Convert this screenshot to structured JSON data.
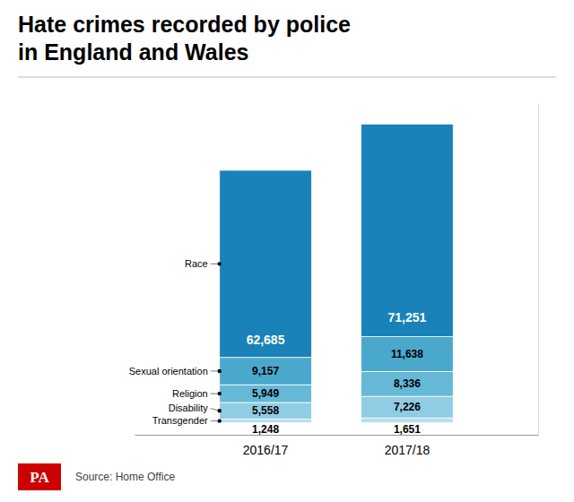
{
  "chart_data": {
    "type": "bar",
    "stacked": true,
    "title": "Hate crimes recorded by police\nin England and Wales",
    "categories": [
      "2016/17",
      "2017/18"
    ],
    "series": [
      {
        "name": "Transgender",
        "color": "#b8dff0",
        "values": [
          1248,
          1651
        ],
        "value_labels": [
          "1,248",
          "1,651"
        ]
      },
      {
        "name": "Disability",
        "color": "#90cce3",
        "values": [
          5558,
          7226
        ],
        "value_labels": [
          "5,558",
          "7,226"
        ]
      },
      {
        "name": "Religion",
        "color": "#65b8d6",
        "values": [
          5949,
          8336
        ],
        "value_labels": [
          "5,949",
          "8,336"
        ]
      },
      {
        "name": "Sexual orientation",
        "color": "#4aa8cc",
        "values": [
          9157,
          11638
        ],
        "value_labels": [
          "9,157",
          "11,638"
        ]
      },
      {
        "name": "Race",
        "color": "#1982b8",
        "values": [
          62685,
          71251
        ],
        "value_labels": [
          "62,685",
          "71,251"
        ]
      }
    ],
    "ylim": [
      -4000,
      107109.14
    ],
    "tick_labels": "x",
    "data_labels": true,
    "annotations": [
      {
        "text": "Source: Home Office"
      },
      {
        "text": "PA",
        "color": "#cc0000"
      }
    ]
  }
}
